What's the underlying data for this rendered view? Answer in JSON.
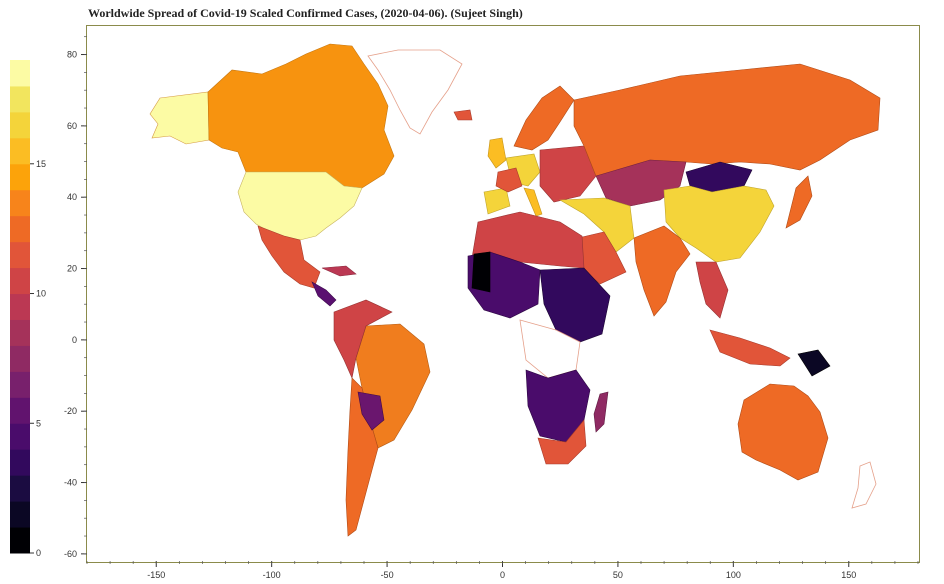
{
  "title": "Worldwide Spread of Covid-19 Scaled Confirmed Cases, (2020-04-06). (Sujeet Singh)",
  "colorbar": {
    "palette": [
      "#000004",
      "#0b0724",
      "#1b0c41",
      "#32095d",
      "#4a0c6b",
      "#61136e",
      "#78206c",
      "#8f2a63",
      "#a5325a",
      "#bb3853",
      "#cf4446",
      "#e15539",
      "#ee6a25",
      "#f7841b",
      "#fca30a",
      "#fbbd23",
      "#f4d43a",
      "#f2e55e",
      "#fcfba4"
    ],
    "ticks": [
      "0",
      "5",
      "10",
      "15"
    ],
    "tick_values": [
      0,
      5,
      10,
      15
    ],
    "max_value": 19
  },
  "chart_data": {
    "type": "choropleth",
    "title": "Worldwide Spread of Covid-19 Scaled Confirmed Cases, (2020-04-06). (Sujeet Singh)",
    "x_ticks": [
      "-150",
      "-100",
      "-50",
      "0",
      "50",
      "100",
      "150"
    ],
    "x_tick_values": [
      -150,
      -100,
      -50,
      0,
      50,
      100,
      150
    ],
    "y_ticks": [
      "80",
      "60",
      "40",
      "20",
      "0",
      "-20",
      "-40",
      "-60"
    ],
    "y_tick_values": [
      80,
      60,
      40,
      20,
      0,
      -20,
      -40,
      -60
    ],
    "xlim": [
      -180,
      180
    ],
    "ylim": [
      -62,
      88
    ],
    "colorbar_range": [
      0,
      19
    ],
    "grid": false
  }
}
